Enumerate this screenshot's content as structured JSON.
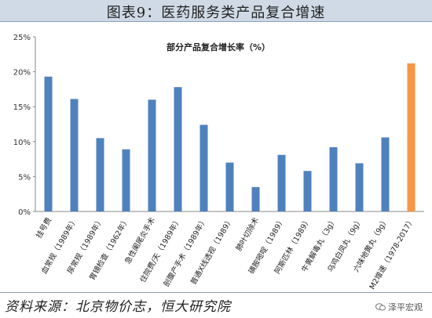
{
  "header": {
    "title": "图表9：医药服务类产品复合增速"
  },
  "footer": {
    "source": "资料来源：北京物价志，恒大研究院"
  },
  "watermark": {
    "text": "泽平宏观",
    "icon": "wechat-icon"
  },
  "colors": {
    "normal": "#4f81bd",
    "highlight": "#f79646",
    "band": "#cfdae6"
  },
  "chart_data": {
    "type": "bar",
    "title": "部分产品复合增长率（%）",
    "xlabel": "",
    "ylabel": "",
    "ylim": [
      0,
      25
    ],
    "yticks": [
      "0%",
      "5%",
      "10%",
      "15%",
      "20%",
      "25%"
    ],
    "grid": false,
    "legend": "none",
    "categories": [
      "挂号费",
      "血常规（1989年）",
      "尿常规（1989年）",
      "胃镜检查（1962年）",
      "急性阑尾炎手术",
      "住院费/天（1989年）",
      "剖腹产手术（1989年）",
      "普通X线透视（1989）",
      "肺叶切除术",
      "磺胺嘧啶（1989）",
      "阿斯匹林（1989）",
      "牛黄解毒丸（3g）",
      "乌鸡白凤丸（9g）",
      "六味地黄丸（9g）",
      "M2增速（1978-2017）"
    ],
    "values": [
      19.3,
      16.1,
      10.5,
      8.9,
      16.0,
      17.8,
      12.4,
      7.0,
      3.5,
      8.1,
      5.8,
      9.2,
      6.9,
      10.6,
      21.2
    ],
    "highlight_index": 14
  }
}
